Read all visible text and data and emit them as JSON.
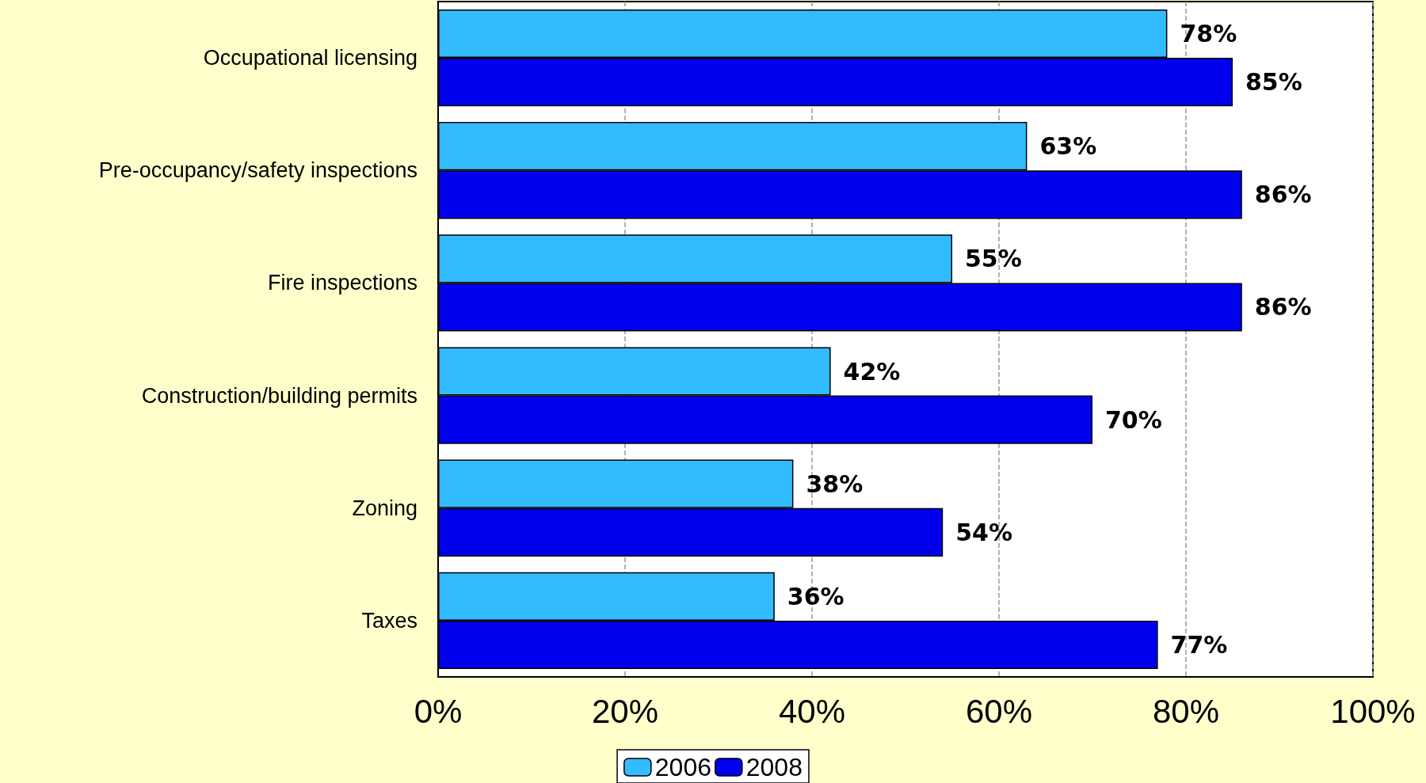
{
  "chart_data": {
    "type": "bar",
    "orientation": "horizontal",
    "categories": [
      "Occupational licensing",
      "Pre-occupancy/safety inspections",
      "Fire inspections",
      "Construction/building permits",
      "Zoning",
      "Taxes"
    ],
    "series": [
      {
        "name": "2006",
        "color": "#33bbff",
        "values": [
          78,
          63,
          55,
          42,
          38,
          36
        ],
        "value_labels": [
          "78%",
          "63%",
          "55%",
          "42%",
          "38%",
          "36%"
        ]
      },
      {
        "name": "2008",
        "color": "#0000ee",
        "values": [
          85,
          86,
          86,
          70,
          54,
          77
        ],
        "value_labels": [
          "85%",
          "86%",
          "86%",
          "70%",
          "54%",
          "77%"
        ]
      }
    ],
    "xlim": [
      0,
      100
    ],
    "xticks": [
      {
        "value": 0,
        "label": "0%"
      },
      {
        "value": 20,
        "label": "20%"
      },
      {
        "value": 40,
        "label": "40%"
      },
      {
        "value": 60,
        "label": "60%"
      },
      {
        "value": 80,
        "label": "80%"
      },
      {
        "value": 100,
        "label": "100%"
      }
    ],
    "grid": "x",
    "legend": "bottom"
  }
}
